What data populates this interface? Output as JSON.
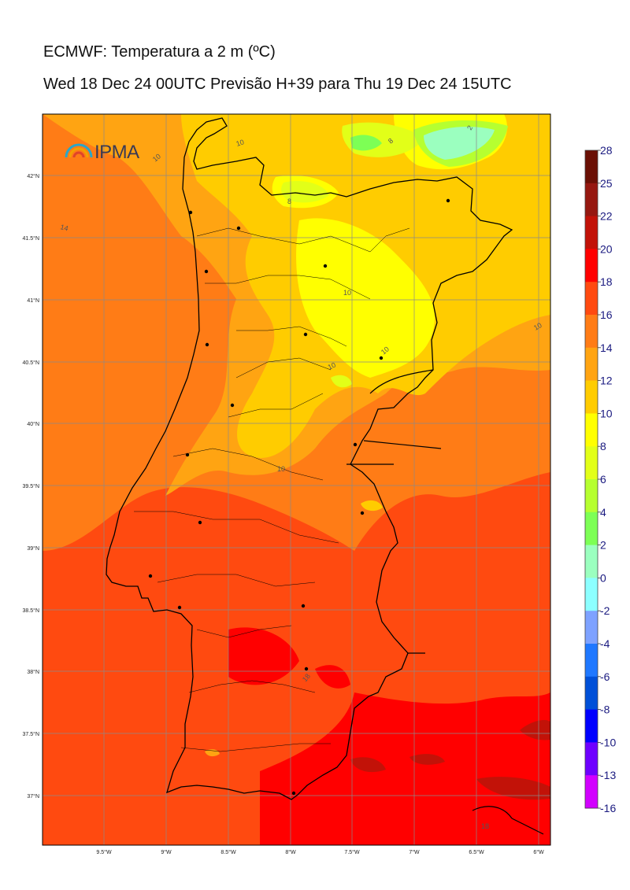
{
  "header": {
    "title": "ECMWF: Temperatura a 2 m (ºC)",
    "subtitle": "Wed 18 Dec 24 00UTC Previsão H+39 para Thu 19 Dec 24 15UTC"
  },
  "logo": {
    "text": "IPMA"
  },
  "latitude_labels": [
    "42°N",
    "41.5°N",
    "41°N",
    "40.5°N",
    "40°N",
    "39.5°N",
    "39°N",
    "38.5°N",
    "38°N",
    "37.5°N",
    "37°N"
  ],
  "longitude_labels": [
    "9.5°W",
    "9°W",
    "8.5°W",
    "8°W",
    "7.5°W",
    "7°W",
    "6.5°W",
    "6°W"
  ],
  "colorbar": {
    "labels": [
      "28",
      "25",
      "22",
      "20",
      "18",
      "16",
      "14",
      "12",
      "10",
      "8",
      "6",
      "4",
      "2",
      "0",
      "-2",
      "-4",
      "-6",
      "-8",
      "-10",
      "-13",
      "-16"
    ],
    "colors": [
      "#6b1005",
      "#961810",
      "#c21208",
      "#ff0000",
      "#ff4a10",
      "#ff7c16",
      "#ffa412",
      "#ffcc00",
      "#ffff00",
      "#e2ff18",
      "#b6ff30",
      "#7dff55",
      "#9bffbf",
      "#8cffff",
      "#7ea2ff",
      "#1f78ff",
      "#0050d8",
      "#0000ff",
      "#6e00ff",
      "#d200ff"
    ]
  },
  "contour_labels": [
    "10",
    "10",
    "8",
    "2",
    "14",
    "8",
    "10",
    "10",
    "10",
    "10",
    "10",
    "18",
    "18",
    "14"
  ]
}
